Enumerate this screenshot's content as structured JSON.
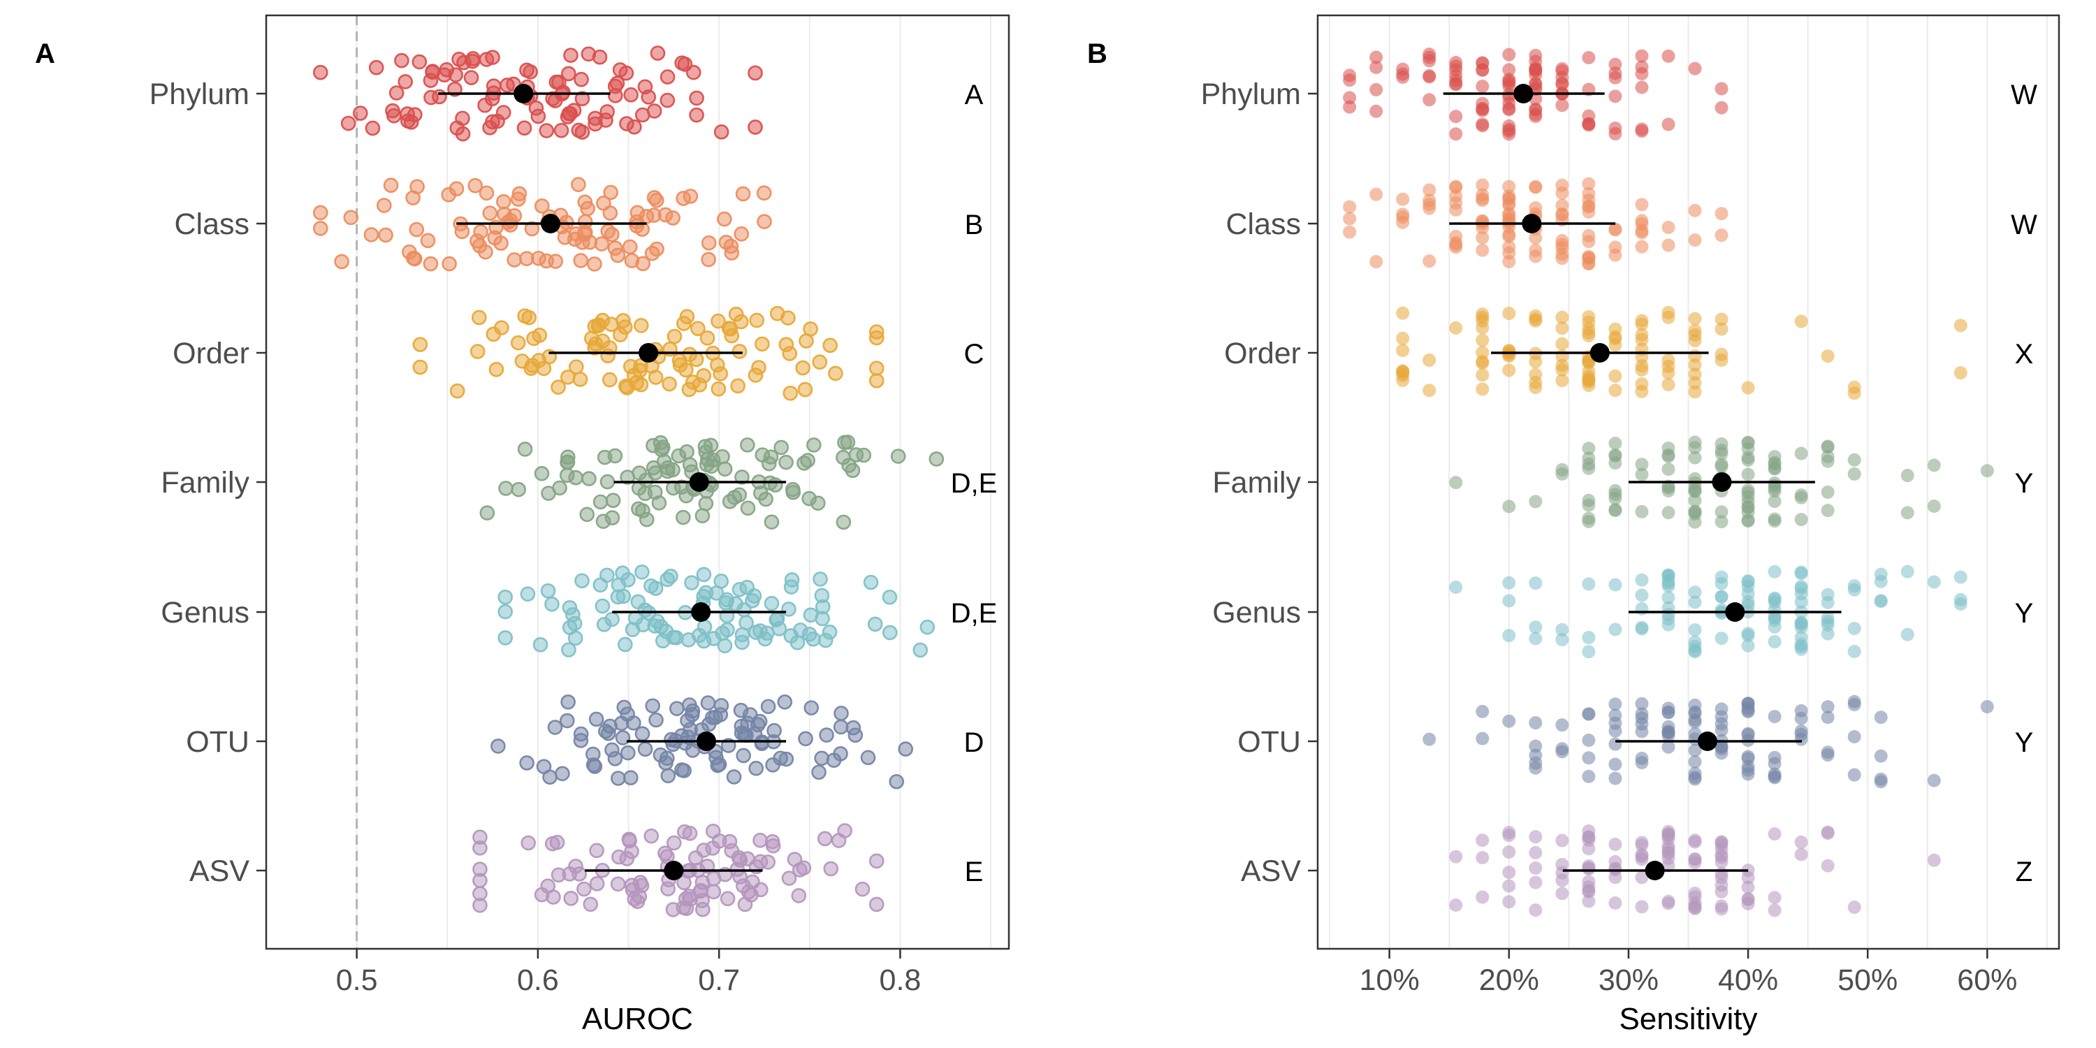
{
  "panels": {
    "a_tag": "A",
    "b_tag": "B"
  },
  "chart_data": [
    {
      "type": "scatter",
      "panel": "A",
      "xlabel": "AUROC",
      "ylabel": "",
      "xlim": [
        0.45,
        0.86
      ],
      "xticks": [
        0.5,
        0.6,
        0.7,
        0.8
      ],
      "xtick_labels": [
        "0.5",
        "0.6",
        "0.7",
        "0.8"
      ],
      "reference_line": 0.5,
      "grid": true,
      "categories": [
        "Phylum",
        "Class",
        "Order",
        "Family",
        "Genus",
        "OTU",
        "ASV"
      ],
      "colors": [
        "#d9504d",
        "#ec8d5f",
        "#e8a838",
        "#85a485",
        "#7ec0c8",
        "#7585a6",
        "#b596be"
      ],
      "series": [
        {
          "category": "Phylum",
          "mean": 0.592,
          "sd_low": 0.545,
          "sd_high": 0.64,
          "letter": "A",
          "range": [
            0.48,
            0.72
          ],
          "n": 100
        },
        {
          "category": "Class",
          "mean": 0.607,
          "sd_low": 0.555,
          "sd_high": 0.66,
          "letter": "B",
          "range": [
            0.48,
            0.725
          ],
          "n": 100
        },
        {
          "category": "Order",
          "mean": 0.661,
          "sd_low": 0.606,
          "sd_high": 0.713,
          "letter": "C",
          "range": [
            0.535,
            0.787
          ],
          "n": 100
        },
        {
          "category": "Family",
          "mean": 0.689,
          "sd_low": 0.642,
          "sd_high": 0.737,
          "letter": "D,E",
          "range": [
            0.572,
            0.82
          ],
          "n": 100
        },
        {
          "category": "Genus",
          "mean": 0.69,
          "sd_low": 0.641,
          "sd_high": 0.737,
          "letter": "D,E",
          "range": [
            0.582,
            0.815
          ],
          "n": 100
        },
        {
          "category": "OTU",
          "mean": 0.693,
          "sd_low": 0.649,
          "sd_high": 0.737,
          "letter": "D",
          "range": [
            0.578,
            0.803
          ],
          "n": 100
        },
        {
          "category": "ASV",
          "mean": 0.675,
          "sd_low": 0.626,
          "sd_high": 0.724,
          "letter": "E",
          "range": [
            0.568,
            0.787
          ],
          "n": 100
        }
      ]
    },
    {
      "type": "scatter",
      "panel": "B",
      "xlabel": "Sensitivity",
      "ylabel": "",
      "xlim": [
        0.04,
        0.66
      ],
      "xticks": [
        0.1,
        0.2,
        0.3,
        0.4,
        0.5,
        0.6
      ],
      "xtick_labels": [
        "10%",
        "20%",
        "30%",
        "40%",
        "50%",
        "60%"
      ],
      "grid": true,
      "categories": [
        "Phylum",
        "Class",
        "Order",
        "Family",
        "Genus",
        "OTU",
        "ASV"
      ],
      "colors": [
        "#d9504d",
        "#ec8d5f",
        "#e8a838",
        "#85a485",
        "#7ec0c8",
        "#7585a6",
        "#b596be"
      ],
      "series": [
        {
          "category": "Phylum",
          "mean": 0.212,
          "sd_low": 0.145,
          "sd_high": 0.28,
          "letter": "W",
          "range": [
            0.067,
            0.378
          ],
          "n": 100
        },
        {
          "category": "Class",
          "mean": 0.219,
          "sd_low": 0.15,
          "sd_high": 0.289,
          "letter": "W",
          "range": [
            0.067,
            0.378
          ],
          "n": 100
        },
        {
          "category": "Order",
          "mean": 0.276,
          "sd_low": 0.185,
          "sd_high": 0.367,
          "letter": "X",
          "range": [
            0.111,
            0.578
          ],
          "n": 100
        },
        {
          "category": "Family",
          "mean": 0.378,
          "sd_low": 0.3,
          "sd_high": 0.456,
          "letter": "Y",
          "range": [
            0.156,
            0.6
          ],
          "n": 100
        },
        {
          "category": "Genus",
          "mean": 0.389,
          "sd_low": 0.3,
          "sd_high": 0.478,
          "letter": "Y",
          "range": [
            0.156,
            0.578
          ],
          "n": 100
        },
        {
          "category": "OTU",
          "mean": 0.366,
          "sd_low": 0.289,
          "sd_high": 0.445,
          "letter": "Y",
          "range": [
            0.133,
            0.6
          ],
          "n": 100
        },
        {
          "category": "ASV",
          "mean": 0.322,
          "sd_low": 0.245,
          "sd_high": 0.4,
          "letter": "Z",
          "range": [
            0.156,
            0.556
          ],
          "n": 100
        }
      ]
    }
  ]
}
